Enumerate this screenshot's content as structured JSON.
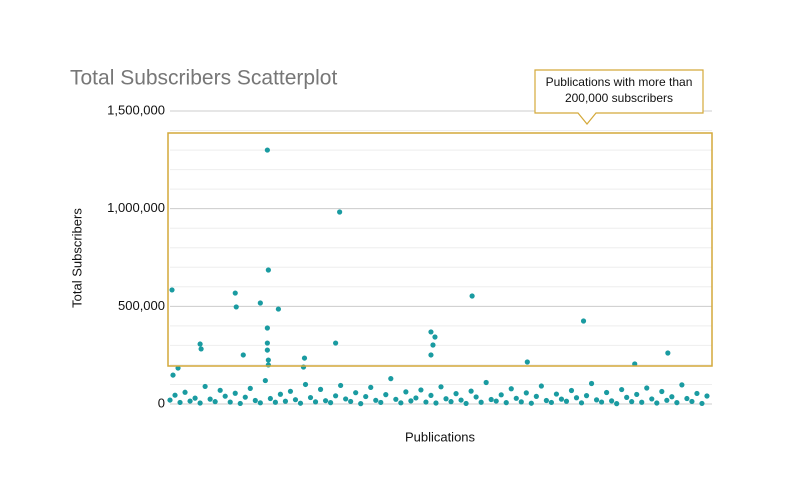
{
  "chart_data": {
    "type": "scatter",
    "title": "Total Subscribers Scatterplot",
    "x_label": "Publications",
    "y_label": "Total Subscribers",
    "color": "#1a9ba1",
    "grid": true,
    "xlim": [
      0,
      540
    ],
    "ylim": [
      0,
      1500000
    ],
    "yticks": [
      0,
      {
        "value": 500000,
        "label": "500,000"
      },
      {
        "value": 1000000,
        "label": "1,000,000"
      },
      {
        "value": 1500000,
        "label": "1,500,000"
      }
    ],
    "y_minor_ticks": [
      100000,
      200000,
      300000,
      400000,
      600000,
      700000,
      800000,
      900000,
      1100000,
      1200000,
      1300000,
      1400000
    ],
    "annotation": {
      "lines": [
        "Publications with more than",
        "200,000 subscribers"
      ]
    },
    "x": [
      0,
      5,
      10,
      15,
      20,
      25,
      30,
      35,
      40,
      45,
      50,
      55,
      60,
      65,
      70,
      75,
      80,
      85,
      90,
      95,
      100,
      105,
      110,
      115,
      120,
      125,
      130,
      135,
      140,
      145,
      150,
      155,
      160,
      165,
      170,
      175,
      180,
      185,
      190,
      195,
      200,
      205,
      210,
      215,
      220,
      225,
      230,
      235,
      240,
      245,
      250,
      255,
      260,
      265,
      270,
      275,
      280,
      285,
      290,
      295,
      300,
      305,
      310,
      315,
      320,
      325,
      330,
      335,
      340,
      345,
      350,
      355,
      360,
      365,
      370,
      375,
      380,
      385,
      390,
      395,
      400,
      405,
      410,
      415,
      420,
      425,
      430,
      435,
      440,
      445,
      450,
      455,
      460,
      465,
      470,
      475,
      480,
      485,
      490,
      495,
      500,
      505,
      510,
      515,
      520,
      525,
      530,
      535,
      2,
      8,
      30,
      31,
      65,
      66,
      73,
      90,
      97,
      98,
      108,
      97,
      97,
      97,
      98,
      98,
      134,
      133,
      165,
      169,
      260,
      264,
      260,
      262,
      301,
      356,
      412,
      463,
      496,
      3
    ],
    "values": [
      20000,
      45000,
      8000,
      60000,
      15000,
      30000,
      5000,
      90000,
      25000,
      12000,
      70000,
      40000,
      10000,
      55000,
      3000,
      35000,
      80000,
      18000,
      6000,
      120000,
      28000,
      9000,
      50000,
      14000,
      65000,
      22000,
      4000,
      100000,
      33000,
      11000,
      75000,
      17000,
      7000,
      42000,
      95000,
      26000,
      13000,
      58000,
      2000,
      38000,
      85000,
      19000,
      8000,
      48000,
      130000,
      24000,
      6000,
      62000,
      16000,
      31000,
      72000,
      10000,
      44000,
      5000,
      88000,
      27000,
      12000,
      53000,
      20000,
      3000,
      66000,
      36000,
      9000,
      110000,
      23000,
      15000,
      47000,
      7000,
      78000,
      29000,
      11000,
      57000,
      4000,
      39000,
      92000,
      18000,
      8000,
      51000,
      25000,
      14000,
      69000,
      32000,
      6000,
      43000,
      105000,
      21000,
      10000,
      59000,
      16000,
      2000,
      74000,
      34000,
      12000,
      49000,
      9000,
      82000,
      26000,
      5000,
      64000,
      19000,
      37000,
      7000,
      98000,
      28000,
      13000,
      54000,
      3000,
      41000,
      584000,
      184000,
      307000,
      282000,
      568000,
      497000,
      251000,
      517000,
      1300000,
      686000,
      486000,
      389000,
      312000,
      276000,
      225000,
      200000,
      235000,
      189000,
      312000,
      983000,
      369000,
      343000,
      251000,
      302000,
      553000,
      215000,
      425000,
      205000,
      261000,
      148000
    ]
  }
}
